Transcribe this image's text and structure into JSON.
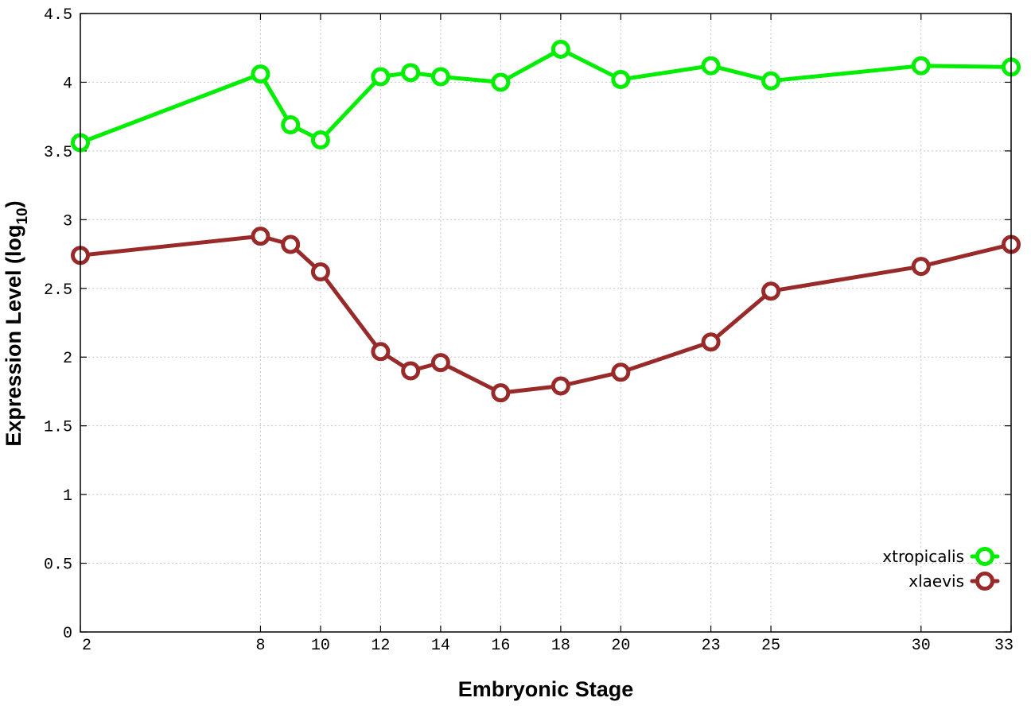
{
  "chart_data": {
    "type": "line",
    "title": "",
    "xlabel": "Embryonic Stage",
    "ylabel_main": "Expression Level (log",
    "ylabel_sub": "10",
    "ylabel_close": ")",
    "xlim": [
      2,
      33
    ],
    "ylim": [
      0,
      4.5
    ],
    "x_tick_labels": [
      "2",
      "8",
      "10",
      "12",
      "14",
      "16",
      "18",
      "20",
      "23",
      "25",
      "30",
      "33"
    ],
    "y_tick_labels": [
      "0",
      "0.5",
      "1",
      "1.5",
      "2",
      "2.5",
      "3",
      "3.5",
      "4",
      "4.5"
    ],
    "grid": true,
    "legend_position": "bottom-right",
    "series": [
      {
        "name": "xtropicalis",
        "color": "#00ee00",
        "marker": "circle",
        "x": [
          2,
          8,
          9,
          10,
          12,
          13,
          14,
          16,
          18,
          20,
          23,
          25,
          30,
          33
        ],
        "y": [
          3.56,
          4.06,
          3.69,
          3.58,
          4.04,
          4.07,
          4.04,
          4.0,
          4.24,
          4.02,
          4.12,
          4.01,
          4.12,
          4.11
        ]
      },
      {
        "name": "xlaevis",
        "color": "#992a2a",
        "marker": "circle",
        "x": [
          2,
          8,
          9,
          10,
          12,
          13,
          14,
          16,
          18,
          20,
          23,
          25,
          30,
          33
        ],
        "y": [
          2.74,
          2.88,
          2.82,
          2.62,
          2.04,
          1.9,
          1.96,
          1.74,
          1.79,
          1.89,
          2.11,
          2.48,
          2.66,
          2.82
        ]
      }
    ]
  }
}
